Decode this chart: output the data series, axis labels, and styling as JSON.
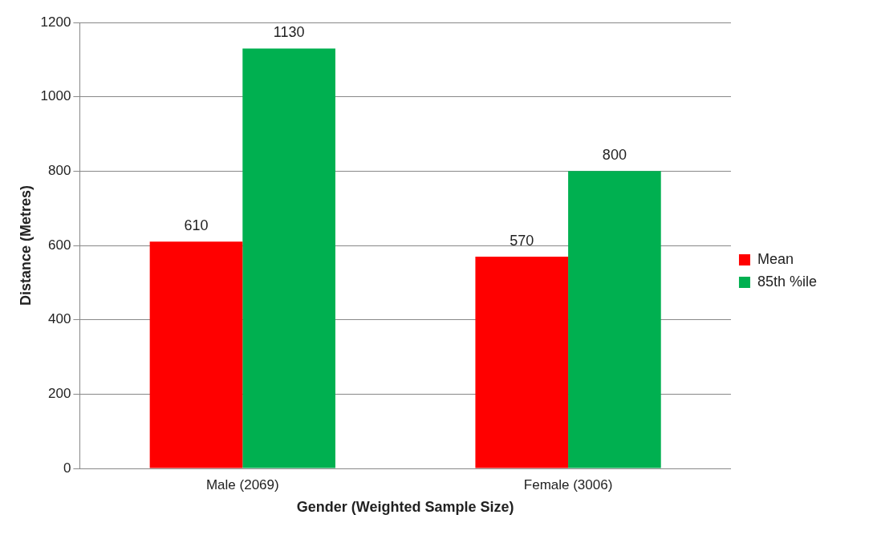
{
  "chart_data": {
    "type": "bar",
    "xlabel": "Gender (Weighted Sample Size)",
    "ylabel": "Distance (Metres)",
    "categories": [
      "Male (2069)",
      "Female (3006)"
    ],
    "series": [
      {
        "name": "Mean",
        "color": "#ff0000",
        "values": [
          610,
          570
        ]
      },
      {
        "name": "85th %ile",
        "color": "#00b050",
        "values": [
          1130,
          800
        ]
      }
    ],
    "ylim": [
      0,
      1200
    ],
    "yticks": [
      0,
      200,
      400,
      600,
      800,
      1000,
      1200
    ],
    "grid": "y",
    "legend": "right",
    "data_labels": true
  }
}
